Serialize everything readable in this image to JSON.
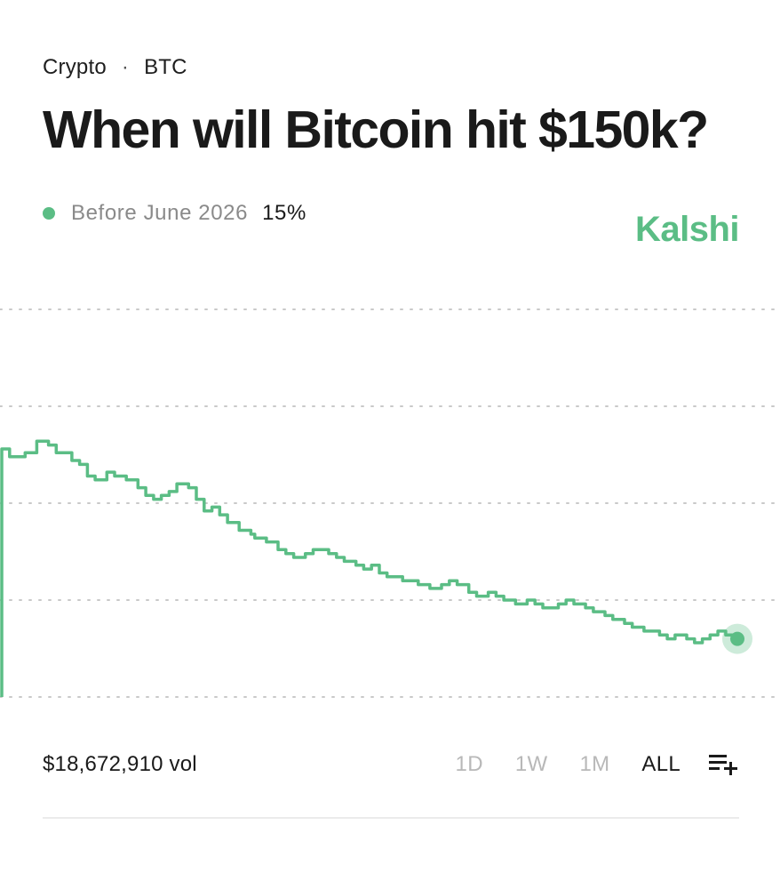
{
  "breadcrumb": {
    "category": "Crypto",
    "separator": "·",
    "ticker": "BTC"
  },
  "title": "When will Bitcoin hit $150k?",
  "legend": {
    "series_name": "Before June 2026",
    "value": "15%"
  },
  "brand": "Kalshi",
  "colors": {
    "accent": "#5bbd85",
    "brand": "#5bbd85",
    "gridline": "#c9c9c9"
  },
  "footer": {
    "volume": "$18,672,910 vol",
    "ranges": [
      "1D",
      "1W",
      "1M",
      "ALL"
    ],
    "selected_range": "ALL",
    "add_icon": "playlist-add-icon"
  },
  "chart_data": {
    "type": "line",
    "step": true,
    "series": [
      {
        "name": "Before June 2026",
        "values": [
          64,
          64,
          62,
          62,
          62,
          62,
          63,
          63,
          63,
          66,
          66,
          66,
          65,
          65,
          63,
          63,
          63,
          63,
          61,
          61,
          60,
          60,
          57,
          57,
          56,
          56,
          56,
          58,
          58,
          57,
          57,
          57,
          56,
          56,
          56,
          54,
          54,
          52,
          52,
          51,
          51,
          52,
          52,
          53,
          53,
          55,
          55,
          55,
          54,
          54,
          51,
          51,
          48,
          48,
          49,
          49,
          47,
          47,
          45,
          45,
          45,
          43,
          43,
          43,
          42,
          41,
          41,
          41,
          40,
          40,
          40,
          38,
          38,
          37,
          37,
          36,
          36,
          36,
          37,
          37,
          38,
          38,
          38,
          38,
          37,
          37,
          36,
          36,
          35,
          35,
          35,
          34,
          34,
          33,
          33,
          34,
          34,
          32,
          32,
          31,
          31,
          31,
          31,
          30,
          30,
          30,
          30,
          29,
          29,
          29,
          28,
          28,
          28,
          29,
          29,
          30,
          30,
          29,
          29,
          29,
          27,
          27,
          26,
          26,
          26,
          27,
          27,
          26,
          26,
          25,
          25,
          25,
          24,
          24,
          24,
          25,
          25,
          24,
          24,
          23,
          23,
          23,
          23,
          24,
          24,
          25,
          25,
          24,
          24,
          24,
          23,
          23,
          22,
          22,
          22,
          21,
          21,
          20,
          20,
          20,
          19,
          19,
          18,
          18,
          18,
          17,
          17,
          17,
          17,
          16,
          16,
          15,
          15,
          16,
          16,
          16,
          15,
          15,
          14,
          14,
          15,
          15,
          16,
          16,
          17,
          17,
          16,
          16,
          15,
          15
        ]
      }
    ],
    "ylim": [
      0,
      100
    ],
    "grid": true,
    "current_value": 15
  }
}
